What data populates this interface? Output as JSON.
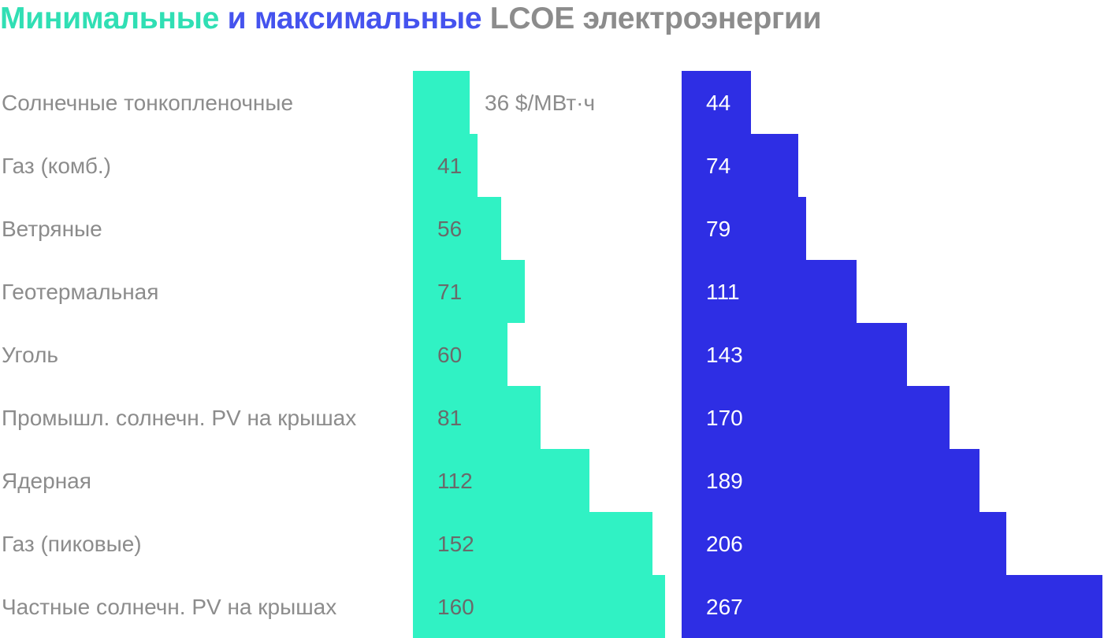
{
  "colors": {
    "min": "#30f2c4",
    "max": "#2e2ee4",
    "title_min": "#30dfb4",
    "title_max": "#4553ee",
    "title_rest": "#8c8c8c",
    "label": "#8c8c8c",
    "min_value_text": "#6a6a6a",
    "max_value_text": "#ffffff"
  },
  "chart_data": {
    "type": "bar",
    "orientation": "horizontal",
    "title": {
      "part_min": "Минимальные",
      "part_and": "и",
      "part_max": "максимальные",
      "part_rest": "LCOE электроэнергии"
    },
    "unit": "$/МВт·ч",
    "categories": [
      "Солнечные тонкопленочные",
      "Газ (комб.)",
      "Ветряные",
      "Геотермальная",
      "Уголь",
      "Промышл. солнечн. PV на крышах",
      "Ядерная",
      "Газ (пиковые)",
      "Частные солнечн. PV на крышах"
    ],
    "series": [
      {
        "values": [
          36,
          41,
          56,
          71,
          60,
          81,
          112,
          152,
          160
        ],
        "value_labels": [
          "36 $/МВт·ч",
          "41",
          "56",
          "71",
          "60",
          "81",
          "112",
          "152",
          "160"
        ]
      },
      {
        "values": [
          44,
          74,
          79,
          111,
          143,
          170,
          189,
          206,
          267
        ],
        "value_labels": [
          "44",
          "74",
          "79",
          "111",
          "143",
          "170",
          "189",
          "206",
          "267"
        ]
      }
    ],
    "grid": false,
    "legend": "none"
  }
}
